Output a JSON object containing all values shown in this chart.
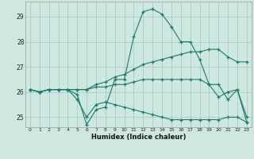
{
  "xlabel": "Humidex (Indice chaleur)",
  "bg_color": "#cce8e0",
  "line_color": "#1a7a6e",
  "grid_color": "#aaccc4",
  "xlim": [
    -0.5,
    23.5
  ],
  "ylim": [
    24.6,
    29.6
  ],
  "yticks": [
    25,
    26,
    27,
    28,
    29
  ],
  "xticks": [
    0,
    1,
    2,
    3,
    4,
    5,
    6,
    7,
    8,
    9,
    10,
    11,
    12,
    13,
    14,
    15,
    16,
    17,
    18,
    19,
    20,
    21,
    22,
    23
  ],
  "series": [
    [
      26.1,
      26.0,
      26.1,
      26.1,
      26.1,
      25.9,
      24.7,
      25.3,
      25.4,
      26.5,
      26.5,
      28.2,
      29.2,
      29.3,
      29.1,
      28.6,
      28.0,
      28.0,
      27.3,
      26.3,
      25.8,
      26.0,
      26.1,
      24.8
    ],
    [
      26.1,
      26.0,
      26.1,
      26.1,
      26.1,
      26.1,
      26.1,
      26.3,
      26.4,
      26.6,
      26.7,
      26.9,
      27.1,
      27.2,
      27.3,
      27.4,
      27.5,
      27.6,
      27.6,
      27.7,
      27.7,
      27.4,
      27.2,
      27.2
    ],
    [
      26.1,
      26.0,
      26.1,
      26.1,
      26.1,
      26.1,
      26.1,
      26.2,
      26.2,
      26.3,
      26.3,
      26.4,
      26.5,
      26.5,
      26.5,
      26.5,
      26.5,
      26.5,
      26.5,
      26.3,
      26.3,
      25.7,
      26.1,
      25.0
    ],
    [
      26.1,
      26.0,
      26.1,
      26.1,
      26.1,
      25.7,
      25.0,
      25.5,
      25.6,
      25.5,
      25.4,
      25.3,
      25.2,
      25.1,
      25.0,
      24.9,
      24.9,
      24.9,
      24.9,
      24.9,
      24.9,
      25.0,
      25.0,
      24.8
    ]
  ]
}
